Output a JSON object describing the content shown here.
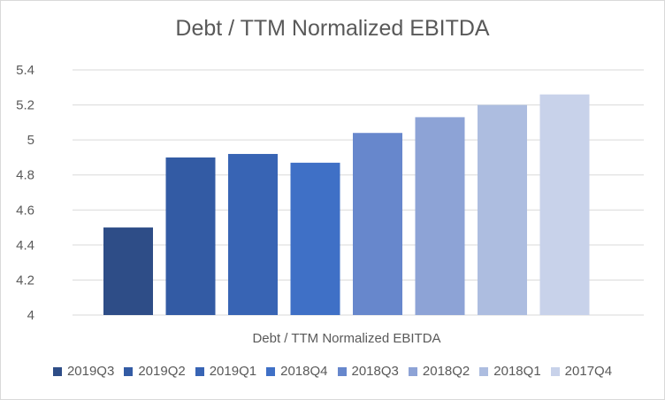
{
  "chart_data": {
    "type": "bar",
    "title": "Debt / TTM Normalized EBITDA",
    "xlabel": "Debt / TTM Normalized EBITDA",
    "ylabel": "",
    "ylim": [
      4,
      5.4
    ],
    "yticks": [
      "4",
      "4.2",
      "4.4",
      "4.6",
      "4.8",
      "5",
      "5.2",
      "5.4"
    ],
    "grid": true,
    "legend_position": "bottom",
    "series": [
      {
        "name": "2019Q3",
        "value": 4.5,
        "color": "#2e4d87"
      },
      {
        "name": "2019Q2",
        "value": 4.9,
        "color": "#335ba4"
      },
      {
        "name": "2019Q1",
        "value": 4.92,
        "color": "#3864b4"
      },
      {
        "name": "2018Q4",
        "value": 4.87,
        "color": "#3f70c6"
      },
      {
        "name": "2018Q3",
        "value": 5.04,
        "color": "#6787cc"
      },
      {
        "name": "2018Q2",
        "value": 5.13,
        "color": "#8da3d6"
      },
      {
        "name": "2018Q1",
        "value": 5.2,
        "color": "#adbde0"
      },
      {
        "name": "2017Q4",
        "value": 5.26,
        "color": "#c8d2ea"
      }
    ]
  }
}
